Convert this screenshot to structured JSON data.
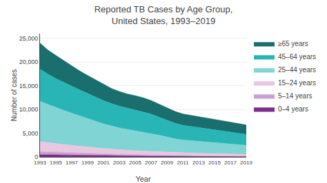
{
  "chart_data": {
    "type": "stacked_area",
    "title": "Reported TB Cases by Age Group,\nUnited States, 1993–2019",
    "x_label": "Year",
    "y_label": "Number of cases",
    "x": [
      1993,
      1994,
      1995,
      1996,
      1997,
      1998,
      1999,
      2000,
      2001,
      2002,
      2003,
      2004,
      2005,
      2006,
      2007,
      2008,
      2009,
      2010,
      2011,
      2012,
      2013,
      2014,
      2015,
      2016,
      2017,
      2018,
      2019
    ],
    "series": [
      {
        "name": "≥65 years",
        "color": "#1b6e6e",
        "values": [
          5500,
          5100,
          4900,
          4600,
          4300,
          4000,
          3800,
          3600,
          3400,
          3200,
          3100,
          3000,
          3000,
          2950,
          2850,
          2750,
          2600,
          2500,
          2400,
          2350,
          2300,
          2250,
          2200,
          2200,
          2150,
          2100,
          2000
        ]
      },
      {
        "name": "45–64 years",
        "color": "#29b5b5",
        "values": [
          6800,
          6400,
          6100,
          5900,
          5700,
          5500,
          5300,
          5100,
          4900,
          4700,
          4600,
          4500,
          4400,
          4300,
          4100,
          3800,
          3500,
          3300,
          3100,
          3000,
          2900,
          2800,
          2700,
          2600,
          2500,
          2400,
          2300
        ]
      },
      {
        "name": "25–44 years",
        "color": "#80d4d4",
        "values": [
          8500,
          8000,
          7600,
          7200,
          6800,
          6400,
          6000,
          5600,
          5200,
          4900,
          4600,
          4400,
          4200,
          4000,
          3800,
          3500,
          3200,
          2900,
          2700,
          2600,
          2500,
          2400,
          2300,
          2200,
          2100,
          2000,
          1900
        ]
      },
      {
        "name": "15–24 years",
        "color": "#e8c8e0",
        "values": [
          2100,
          2000,
          1850,
          1700,
          1580,
          1470,
          1370,
          1270,
          1170,
          1080,
          990,
          920,
          870,
          820,
          770,
          720,
          670,
          620,
          590,
          560,
          530,
          500,
          470,
          450,
          430,
          410,
          390
        ]
      },
      {
        "name": "5–14 years",
        "color": "#c8a0d0",
        "values": [
          650,
          610,
          570,
          530,
          490,
          450,
          420,
          390,
          360,
          330,
          310,
          285,
          265,
          245,
          230,
          210,
          195,
          178,
          165,
          155,
          145,
          135,
          128,
          120,
          112,
          105,
          98
        ]
      },
      {
        "name": "0–4 years",
        "color": "#7b2d8b",
        "values": [
          480,
          450,
          420,
          390,
          360,
          330,
          305,
          278,
          255,
          235,
          215,
          198,
          182,
          168,
          155,
          143,
          132,
          121,
          112,
          103,
          95,
          88,
          82,
          76,
          70,
          65,
          60
        ]
      }
    ],
    "stacked": true,
    "xlim": [
      1993,
      2019
    ],
    "xticks": [
      1993,
      1995,
      1997,
      1999,
      2001,
      2003,
      2005,
      2007,
      2009,
      2011,
      2013,
      2015,
      2017,
      2019
    ],
    "ylim": [
      0,
      26000
    ],
    "yticks": [
      0,
      {
        "value": 5000,
        "label": "5,000"
      },
      {
        "value": 10000,
        "label": "10,000"
      },
      {
        "value": 15000,
        "label": "15,000"
      },
      {
        "value": 20000,
        "label": "20,000"
      },
      {
        "value": 25000,
        "label": "25,000"
      }
    ],
    "grid": true,
    "legend": "right"
  }
}
